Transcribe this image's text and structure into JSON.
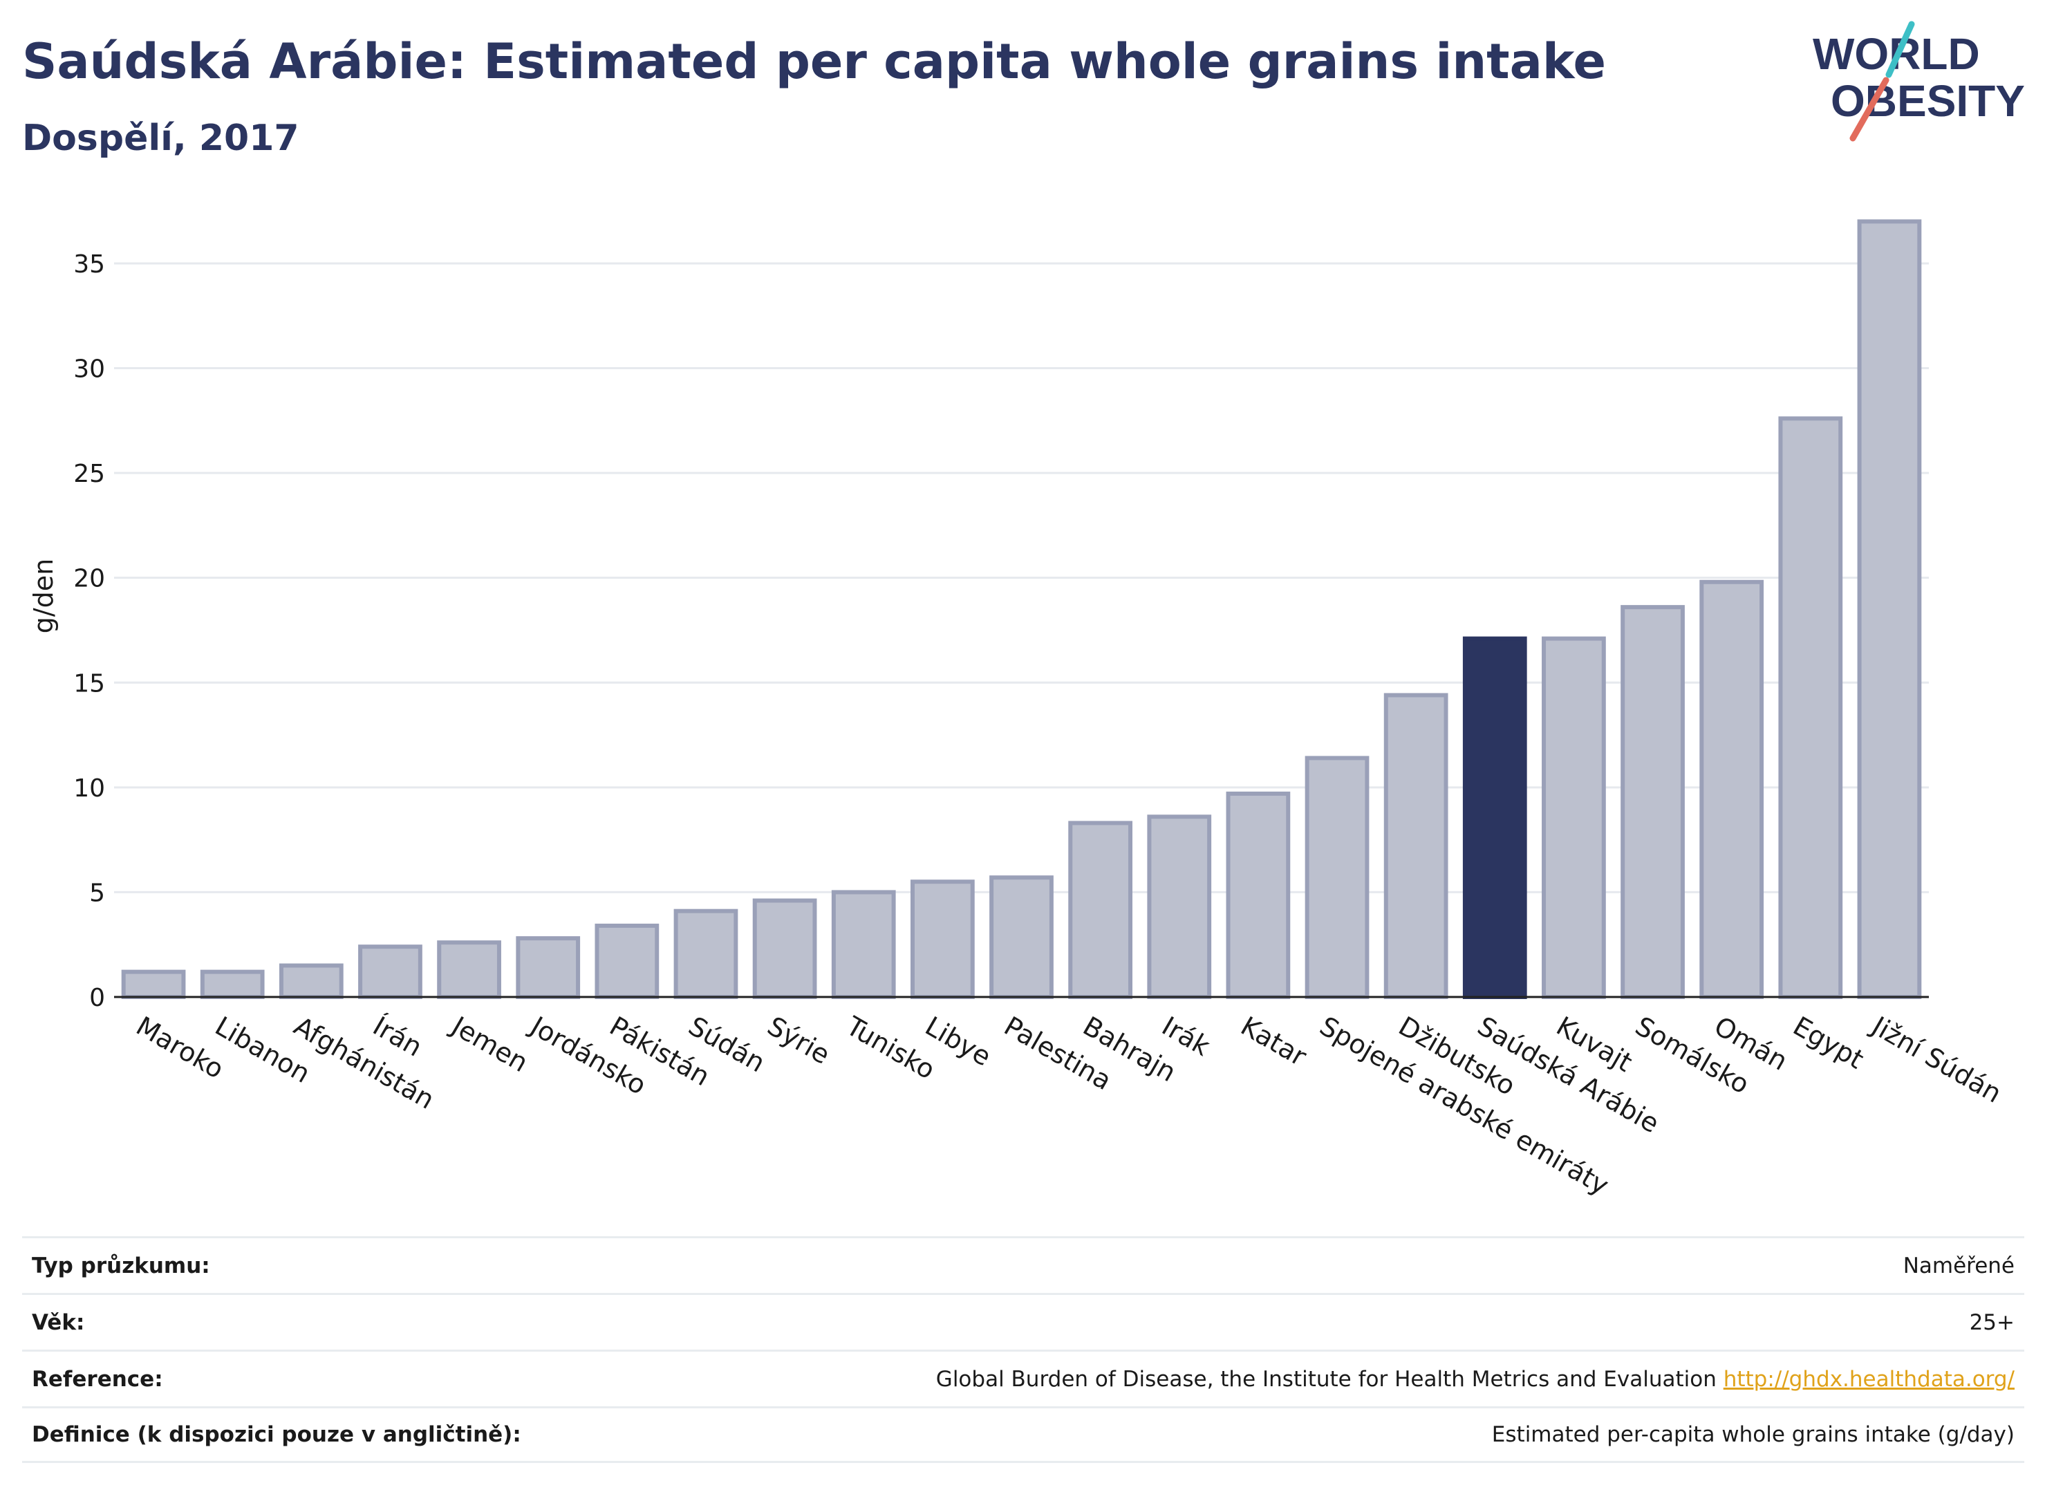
{
  "header": {
    "title": "Saúdská Arábie: Estimated per capita whole grains intake",
    "subtitle": "Dospělí, 2017"
  },
  "logo": {
    "line1": "WORLD",
    "line2": "OBESITY",
    "name": "world-obesity-logo"
  },
  "colors": {
    "bar": "#bcc0ce",
    "bar_stroke": "#9aa0b8",
    "highlight": "#2b3560",
    "grid": "#e6e9ee",
    "text": "#1a1a1a",
    "brand": "#2b3560",
    "logo_teal": "#3ebfc6",
    "logo_coral": "#e26b5c",
    "link": "#e0a21a"
  },
  "chart_data": {
    "type": "bar",
    "ylabel": "g/den",
    "xlabel": "",
    "ylim": [
      0,
      38
    ],
    "yticks": [
      0,
      5,
      10,
      15,
      20,
      25,
      30,
      35
    ],
    "grid": true,
    "highlight": "Saúdská Arábie",
    "categories": [
      "Maroko",
      "Libanon",
      "Afghánistán",
      "Írán",
      "Jemen",
      "Jordánsko",
      "Pákistán",
      "Súdán",
      "Sýrie",
      "Tunisko",
      "Libye",
      "Palestina",
      "Bahrajn",
      "Irák",
      "Katar",
      "Spojené arabské emiráty",
      "Džibutsko",
      "Saúdská Arábie",
      "Kuvajt",
      "Somálsko",
      "Omán",
      "Egypt",
      "Jižní Súdán"
    ],
    "values": [
      1.2,
      1.2,
      1.5,
      2.4,
      2.6,
      2.8,
      3.4,
      4.1,
      4.6,
      5.0,
      5.5,
      5.7,
      8.3,
      8.6,
      9.7,
      11.4,
      14.4,
      17.1,
      17.1,
      18.6,
      19.8,
      27.6,
      37.0
    ]
  },
  "meta": {
    "rows": [
      {
        "label": "Typ průzkumu:",
        "value": "Naměřené"
      },
      {
        "label": "Věk:",
        "value": "25+"
      },
      {
        "label": "Reference:",
        "value": "Global Burden of Disease, the Institute for Health Metrics and Evaluation",
        "link": "http://ghdx.healthdata.org/"
      },
      {
        "label": "Definice (k dispozici pouze v angličtině):",
        "value": "Estimated per-capita whole grains intake (g/day)"
      }
    ]
  }
}
